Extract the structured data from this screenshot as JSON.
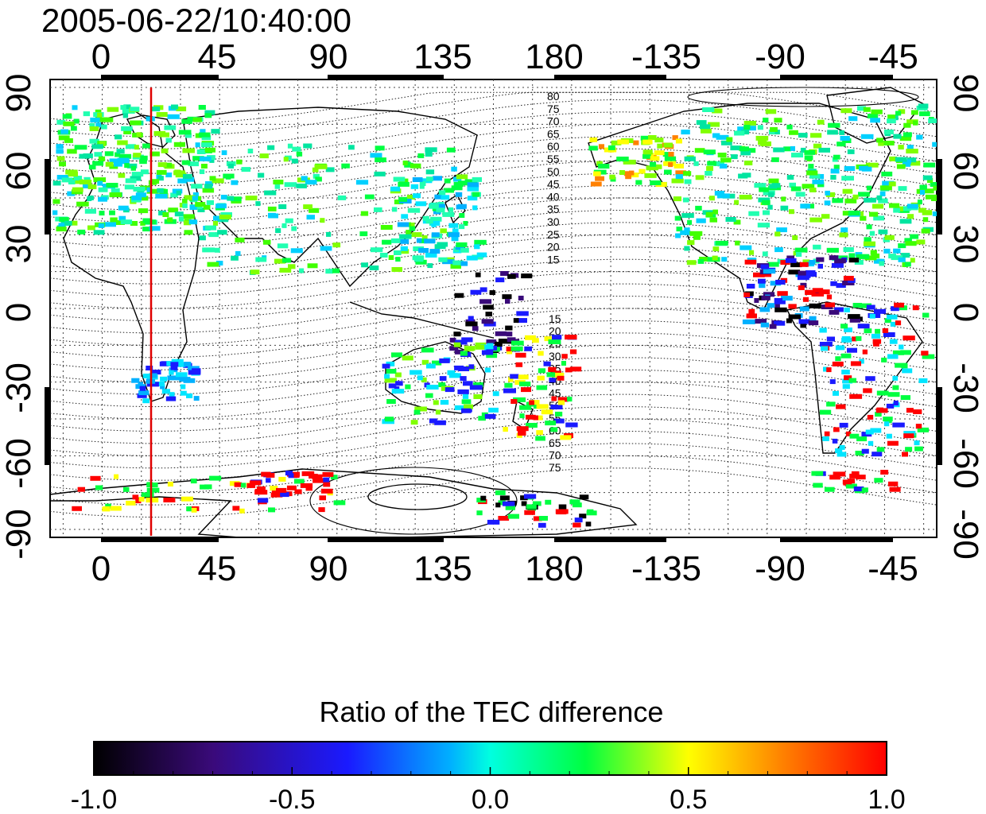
{
  "title": "2005-06-22/10:40:00",
  "map": {
    "lon_ticks": [
      "0",
      "45",
      "90",
      "135",
      "180",
      "-135",
      "-90",
      "-45"
    ],
    "lat_ticks": [
      "90",
      "60",
      "30",
      "0",
      "-30",
      "-60",
      "-90"
    ],
    "lon_range": [
      -20,
      320
    ],
    "lat_range": [
      -90,
      90
    ],
    "grid": "dotted, every 15 degrees",
    "marker_line": {
      "lon": 20,
      "color": "#e00000"
    },
    "contour_labels_north": [
      "80",
      "75",
      "70",
      "65",
      "60",
      "55",
      "50",
      "45",
      "40",
      "35",
      "30",
      "25",
      "20",
      "15"
    ],
    "contour_labels_south": [
      "15",
      "20",
      "25",
      "30",
      "35",
      "40",
      "45",
      "50",
      "55",
      "60",
      "65",
      "70",
      "75"
    ]
  },
  "colorbar": {
    "label": "Ratio of the TEC difference",
    "ticks": [
      "-1.0",
      "-0.5",
      "0.0",
      "0.5",
      "1.0"
    ],
    "range": [
      -1.0,
      1.0
    ],
    "colormap": [
      "#000000",
      "#3a0a7a",
      "#1a1aff",
      "#00e5ff",
      "#00ff40",
      "#ffff00",
      "#ff0000"
    ]
  }
}
